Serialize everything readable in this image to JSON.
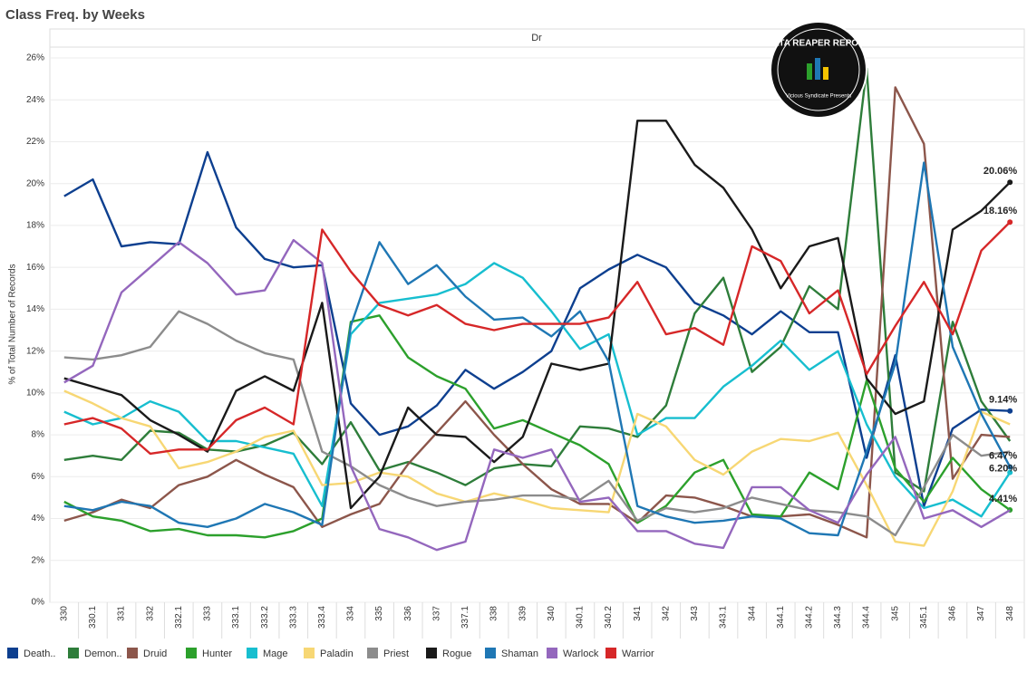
{
  "chart_data": {
    "type": "line",
    "title": "Class Freq. by Weeks",
    "panel_header": "Dr",
    "y_label": "% of Total Number of Records",
    "logo": "DATA REAPER REPORT",
    "logo_subtitle": "Vicious Syndicate Presents",
    "grid": true,
    "ylim": [
      0,
      26
    ],
    "yticks": [
      {
        "value": 0,
        "label": "0%"
      },
      {
        "value": 2,
        "label": "2%"
      },
      {
        "value": 4,
        "label": "4%"
      },
      {
        "value": 6,
        "label": "6%"
      },
      {
        "value": 8,
        "label": "8%"
      },
      {
        "value": 10,
        "label": "10%"
      },
      {
        "value": 12,
        "label": "12%"
      },
      {
        "value": 14,
        "label": "14%"
      },
      {
        "value": 16,
        "label": "16%"
      },
      {
        "value": 18,
        "label": "18%"
      },
      {
        "value": 20,
        "label": "20%"
      },
      {
        "value": 22,
        "label": "22%"
      },
      {
        "value": 24,
        "label": "24%"
      },
      {
        "value": 26,
        "label": "26%"
      }
    ],
    "categories": [
      "330",
      "330.1",
      "331",
      "332",
      "332.1",
      "333",
      "333.1",
      "333.2",
      "333.3",
      "333.4",
      "334",
      "335",
      "336",
      "337",
      "337.1",
      "338",
      "339",
      "340",
      "340.1",
      "340.2",
      "341",
      "342",
      "343",
      "343.1",
      "344",
      "344.1",
      "344.2",
      "344.3",
      "344.4",
      "345",
      "345.1",
      "346",
      "347",
      "348"
    ],
    "series": [
      {
        "name": "Death..",
        "color": "#0d3f8f",
        "values": [
          19.4,
          20.2,
          17.0,
          17.2,
          17.1,
          21.5,
          17.9,
          16.4,
          16.0,
          16.1,
          9.5,
          8.0,
          8.4,
          9.4,
          11.1,
          10.2,
          11.0,
          12.0,
          15.0,
          15.9,
          16.6,
          16.0,
          14.3,
          13.7,
          12.8,
          13.9,
          12.9,
          12.9,
          6.9,
          11.8,
          4.6,
          8.3,
          9.2,
          9.14
        ],
        "value_labels": [
          null,
          null,
          null,
          null,
          null,
          null,
          null,
          null,
          null,
          null,
          null,
          null,
          null,
          null,
          null,
          null,
          null,
          null,
          null,
          null,
          null,
          null,
          null,
          null,
          null,
          null,
          null,
          null,
          null,
          null,
          null,
          null,
          null,
          "9.14%"
        ]
      },
      {
        "name": "Demon..",
        "color": "#2e7d3a",
        "values": [
          6.8,
          7.0,
          6.8,
          8.2,
          8.1,
          7.3,
          7.2,
          7.5,
          8.1,
          6.6,
          8.6,
          6.3,
          6.7,
          6.2,
          5.6,
          6.4,
          6.6,
          6.5,
          8.4,
          8.3,
          7.9,
          9.4,
          13.8,
          15.5,
          11.0,
          12.2,
          15.1,
          14.0,
          25.5,
          6.2,
          5.3,
          13.4,
          9.6,
          7.7
        ]
      },
      {
        "name": "Druid",
        "color": "#8c564b",
        "values": [
          3.9,
          4.3,
          4.9,
          4.5,
          5.6,
          6.0,
          6.8,
          6.1,
          5.5,
          3.6,
          4.2,
          4.7,
          6.6,
          8.1,
          9.6,
          8.0,
          6.6,
          5.4,
          4.7,
          4.7,
          3.8,
          5.1,
          5.0,
          4.6,
          4.1,
          4.1,
          4.2,
          3.7,
          3.1,
          24.6,
          21.9,
          5.9,
          8.0,
          7.9
        ]
      },
      {
        "name": "Hunter",
        "color": "#2ca02c",
        "values": [
          4.8,
          4.1,
          3.9,
          3.4,
          3.5,
          3.2,
          3.2,
          3.1,
          3.4,
          4.0,
          13.4,
          13.7,
          11.7,
          10.8,
          10.2,
          8.3,
          8.7,
          8.1,
          7.5,
          6.6,
          3.8,
          4.6,
          6.2,
          6.8,
          4.2,
          4.1,
          6.2,
          5.4,
          10.6,
          6.4,
          4.8,
          6.9,
          5.4,
          4.41
        ],
        "value_labels": [
          null,
          null,
          null,
          null,
          null,
          null,
          null,
          null,
          null,
          null,
          null,
          null,
          null,
          null,
          null,
          null,
          null,
          null,
          null,
          null,
          null,
          null,
          null,
          null,
          null,
          null,
          null,
          null,
          null,
          null,
          null,
          null,
          null,
          "4.41%"
        ]
      },
      {
        "name": "Mage",
        "color": "#17becf",
        "values": [
          9.1,
          8.5,
          8.8,
          9.6,
          9.1,
          7.7,
          7.7,
          7.4,
          7.1,
          4.6,
          12.8,
          14.3,
          14.5,
          14.7,
          15.2,
          16.2,
          15.5,
          13.9,
          12.1,
          12.8,
          8.0,
          8.8,
          8.8,
          10.3,
          11.3,
          12.5,
          11.1,
          12.0,
          8.5,
          6.0,
          4.5,
          4.9,
          4.1,
          6.2
        ],
        "value_labels": [
          null,
          null,
          null,
          null,
          null,
          null,
          null,
          null,
          null,
          null,
          null,
          null,
          null,
          null,
          null,
          null,
          null,
          null,
          null,
          null,
          null,
          null,
          null,
          null,
          null,
          null,
          null,
          null,
          null,
          null,
          null,
          null,
          null,
          "6.20%"
        ]
      },
      {
        "name": "Paladin",
        "color": "#f7d774",
        "values": [
          10.1,
          9.5,
          8.8,
          8.4,
          6.4,
          6.7,
          7.2,
          7.9,
          8.2,
          5.6,
          5.7,
          6.2,
          6.0,
          5.2,
          4.8,
          5.2,
          4.9,
          4.5,
          4.4,
          4.3,
          9.0,
          8.4,
          6.8,
          6.1,
          7.2,
          7.8,
          7.7,
          8.1,
          5.6,
          2.9,
          2.7,
          5.3,
          9.1,
          8.5
        ]
      },
      {
        "name": "Priest",
        "color": "#8c8c8c",
        "values": [
          11.7,
          11.6,
          11.8,
          12.2,
          13.9,
          13.3,
          12.5,
          11.9,
          11.6,
          7.2,
          6.5,
          5.6,
          5.0,
          4.6,
          4.8,
          4.9,
          5.1,
          5.1,
          4.9,
          5.8,
          3.9,
          4.5,
          4.3,
          4.5,
          5.0,
          4.7,
          4.4,
          4.3,
          4.1,
          3.2,
          5.5,
          8.0,
          7.0,
          7.2
        ]
      },
      {
        "name": "Rogue",
        "color": "#1a1a1a",
        "values": [
          10.7,
          10.3,
          9.9,
          8.7,
          8.0,
          7.2,
          10.1,
          10.8,
          10.1,
          14.3,
          4.5,
          6.0,
          9.3,
          8.0,
          7.9,
          6.7,
          7.9,
          11.4,
          11.1,
          11.4,
          23.0,
          23.0,
          20.9,
          19.8,
          17.8,
          15.0,
          17.0,
          17.4,
          10.7,
          9.0,
          9.6,
          17.8,
          18.7,
          20.06
        ],
        "value_labels": [
          null,
          null,
          null,
          null,
          null,
          null,
          null,
          null,
          null,
          null,
          null,
          null,
          null,
          null,
          null,
          null,
          null,
          null,
          null,
          null,
          null,
          null,
          null,
          null,
          null,
          null,
          null,
          null,
          null,
          null,
          null,
          null,
          null,
          "20.06%"
        ]
      },
      {
        "name": "Shaman",
        "color": "#1f77b4",
        "values": [
          4.6,
          4.4,
          4.8,
          4.6,
          3.8,
          3.6,
          4.0,
          4.7,
          4.3,
          3.7,
          13.2,
          17.2,
          15.2,
          16.1,
          14.6,
          13.5,
          13.6,
          12.7,
          13.9,
          11.5,
          4.6,
          4.1,
          3.8,
          3.9,
          4.1,
          4.0,
          3.3,
          3.2,
          7.2,
          11.4,
          21.0,
          12.2,
          9.0,
          6.47
        ],
        "value_labels": [
          null,
          null,
          null,
          null,
          null,
          null,
          null,
          null,
          null,
          null,
          null,
          null,
          null,
          null,
          null,
          null,
          null,
          null,
          null,
          null,
          null,
          null,
          null,
          null,
          null,
          null,
          null,
          null,
          null,
          null,
          null,
          null,
          null,
          "6.47%"
        ]
      },
      {
        "name": "Warlock",
        "color": "#9467bd",
        "values": [
          10.5,
          11.3,
          14.8,
          16.0,
          17.2,
          16.2,
          14.7,
          14.9,
          17.3,
          16.2,
          6.5,
          3.5,
          3.1,
          2.5,
          2.9,
          7.3,
          6.9,
          7.3,
          4.8,
          5.0,
          3.4,
          3.4,
          2.8,
          2.6,
          5.5,
          5.5,
          4.4,
          3.8,
          6.1,
          7.9,
          4.0,
          4.4,
          3.6,
          4.4
        ]
      },
      {
        "name": "Warrior",
        "color": "#d62728",
        "values": [
          8.5,
          8.8,
          8.3,
          7.1,
          7.3,
          7.3,
          8.7,
          9.3,
          8.5,
          17.8,
          15.8,
          14.2,
          13.7,
          14.2,
          13.3,
          13.0,
          13.3,
          13.3,
          13.3,
          13.6,
          15.3,
          12.8,
          13.1,
          12.3,
          17.0,
          16.3,
          13.8,
          14.9,
          10.9,
          13.2,
          15.3,
          12.8,
          16.8,
          18.16
        ],
        "value_labels": [
          null,
          null,
          null,
          null,
          null,
          null,
          null,
          null,
          null,
          null,
          null,
          null,
          null,
          null,
          null,
          null,
          null,
          null,
          null,
          null,
          null,
          null,
          null,
          null,
          null,
          null,
          null,
          null,
          null,
          null,
          null,
          null,
          null,
          "18.16%"
        ]
      }
    ]
  }
}
